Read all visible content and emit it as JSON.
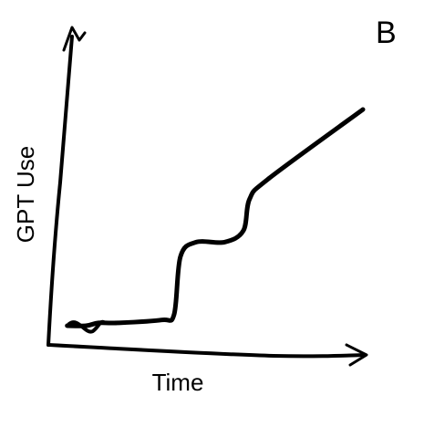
{
  "panel_label": "B",
  "chart_data": {
    "type": "line",
    "title": "",
    "xlabel": "Time",
    "ylabel": "GPT Use",
    "x_ticks": false,
    "y_ticks": false,
    "grid": false,
    "legend": "none",
    "style": "hand-drawn sketch",
    "line_color": "#000000",
    "series": [
      {
        "x": [
          0.06,
          0.12,
          0.16,
          0.22,
          0.36,
          0.4,
          0.42,
          0.47,
          0.56,
          0.62,
          0.64,
          0.7,
          1.0
        ],
        "y": [
          0.06,
          0.06,
          0.07,
          0.07,
          0.08,
          0.1,
          0.3,
          0.35,
          0.35,
          0.39,
          0.5,
          0.57,
          0.81
        ]
      }
    ]
  }
}
